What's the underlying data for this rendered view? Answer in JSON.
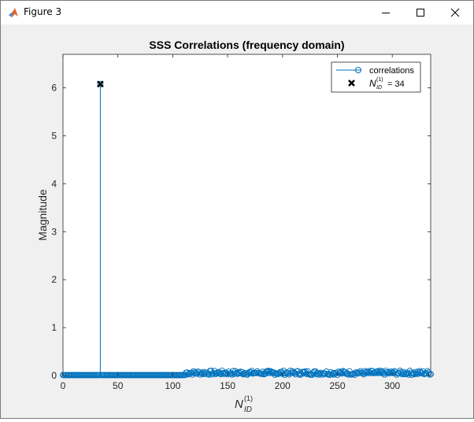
{
  "window": {
    "title": "Figure 3",
    "icons": {
      "app": "matlab-icon",
      "minimize": "minimize-icon",
      "maximize": "maximize-icon",
      "close": "close-icon"
    }
  },
  "chart_data": {
    "type": "stem",
    "title": "SSS Correlations (frequency domain)",
    "xlabel_base": "N",
    "xlabel_sup": "(1)",
    "xlabel_sub": "ID",
    "ylabel": "Magnitude",
    "xlim": [
      0,
      335
    ],
    "ylim": [
      0,
      6.7
    ],
    "xticks": [
      0,
      50,
      100,
      150,
      200,
      250,
      300
    ],
    "yticks": [
      0,
      1,
      2,
      3,
      4,
      5,
      6
    ],
    "series_color": "#0072bd",
    "peak": {
      "x": 34,
      "y": 6.08
    },
    "base_level": 0.01,
    "noise_start": 112,
    "noise_level": 0.1,
    "n_points": 336,
    "legend": {
      "position": "top-right",
      "items": [
        {
          "label": "correlations"
        },
        {
          "label_base": "N",
          "label_sup": "(1)",
          "label_sub": "ID",
          "label_eq": " = 34"
        }
      ]
    }
  }
}
